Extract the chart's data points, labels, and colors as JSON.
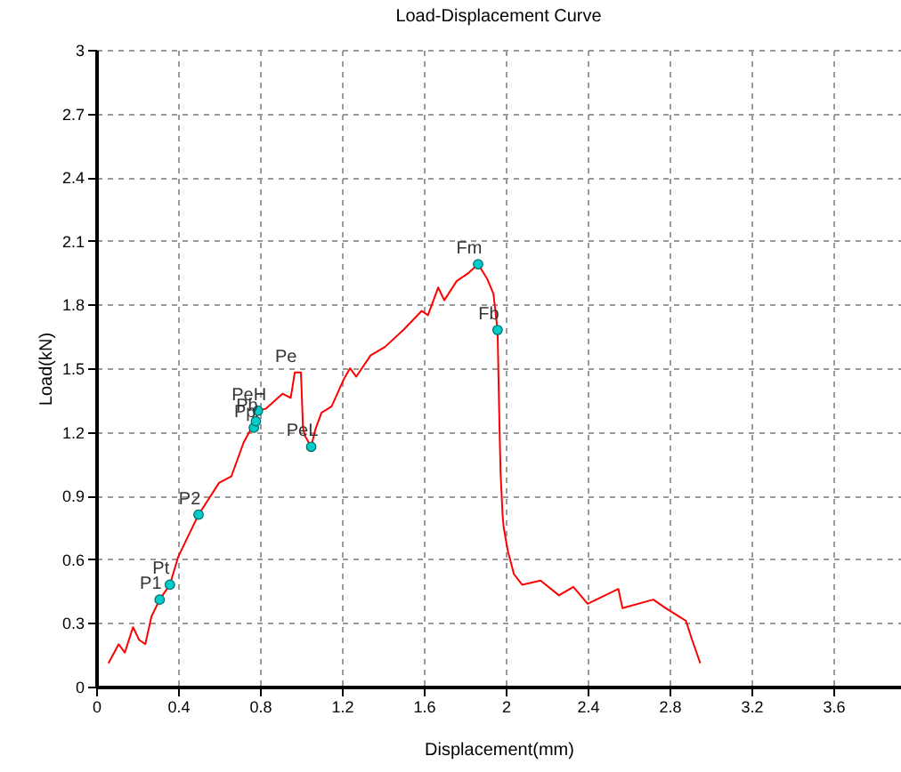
{
  "chart_data": {
    "type": "line",
    "title": "Load-Displacement Curve",
    "xlabel": "Displacement(mm)",
    "ylabel": "Load(kN)",
    "xlim": [
      0,
      3.93
    ],
    "ylim": [
      0,
      3
    ],
    "xticks": [
      0,
      0.4,
      0.8,
      1.2,
      1.6,
      2,
      2.4,
      2.8,
      3.2,
      3.6
    ],
    "yticks": [
      0,
      0.3,
      0.6,
      0.9,
      1.2,
      1.5,
      1.8,
      2.1,
      2.4,
      2.7,
      3
    ],
    "grid": true,
    "line_style": "solid",
    "series": [
      {
        "type": "line",
        "color": "#ff0000",
        "marker": "none",
        "x": [
          0.06,
          0.11,
          0.14,
          0.18,
          0.21,
          0.24,
          0.27,
          0.31,
          0.36,
          0.4,
          0.5,
          0.6,
          0.66,
          0.72,
          0.76,
          0.77,
          0.78,
          0.79,
          0.83,
          0.91,
          0.95,
          0.97,
          1.0,
          1.01,
          1.02,
          1.05,
          1.07,
          1.1,
          1.15,
          1.21,
          1.24,
          1.27,
          1.34,
          1.41,
          1.5,
          1.59,
          1.62,
          1.67,
          1.7,
          1.76,
          1.82,
          1.865,
          1.91,
          1.94,
          1.96,
          1.97,
          1.975,
          1.985,
          1.99,
          2.01,
          2.04,
          2.08,
          2.17,
          2.26,
          2.33,
          2.4,
          2.55,
          2.57,
          2.72,
          2.78,
          2.88,
          2.91,
          2.95
        ],
        "values": [
          0.11,
          0.2,
          0.16,
          0.28,
          0.22,
          0.2,
          0.33,
          0.41,
          0.48,
          0.61,
          0.81,
          0.96,
          0.99,
          1.15,
          1.22,
          1.22,
          1.25,
          1.3,
          1.31,
          1.38,
          1.36,
          1.48,
          1.48,
          1.22,
          1.18,
          1.13,
          1.21,
          1.29,
          1.32,
          1.45,
          1.5,
          1.46,
          1.56,
          1.6,
          1.68,
          1.77,
          1.75,
          1.88,
          1.82,
          1.91,
          1.95,
          1.99,
          1.92,
          1.85,
          1.68,
          1.2,
          1.0,
          0.8,
          0.75,
          0.64,
          0.53,
          0.48,
          0.5,
          0.43,
          0.47,
          0.39,
          0.46,
          0.37,
          0.41,
          0.37,
          0.31,
          0.22,
          0.11
        ]
      },
      {
        "type": "scatter",
        "color": "#00cccc",
        "marker": "circle",
        "x": [
          0.31,
          0.36,
          0.5,
          0.77,
          0.78,
          0.79,
          1.05,
          1.865,
          1.96
        ],
        "values": [
          0.41,
          0.48,
          0.81,
          1.22,
          1.25,
          1.3,
          1.13,
          1.99,
          1.68
        ]
      }
    ],
    "annotations": [
      {
        "text": "P1",
        "x": 0.31,
        "y": 0.41
      },
      {
        "text": "Pt",
        "x": 0.36,
        "y": 0.48
      },
      {
        "text": "P2",
        "x": 0.5,
        "y": 0.81
      },
      {
        "text": "Pp",
        "x": 0.77,
        "y": 1.22
      },
      {
        "text": "Pb",
        "x": 0.78,
        "y": 1.25
      },
      {
        "text": "PeH",
        "x": 0.79,
        "y": 1.3
      },
      {
        "text": "Pe",
        "x": 0.97,
        "y": 1.48
      },
      {
        "text": "PeL",
        "x": 1.05,
        "y": 1.13
      },
      {
        "text": "Fm",
        "x": 1.865,
        "y": 1.99
      },
      {
        "text": "Fb",
        "x": 1.96,
        "y": 1.68
      }
    ]
  }
}
